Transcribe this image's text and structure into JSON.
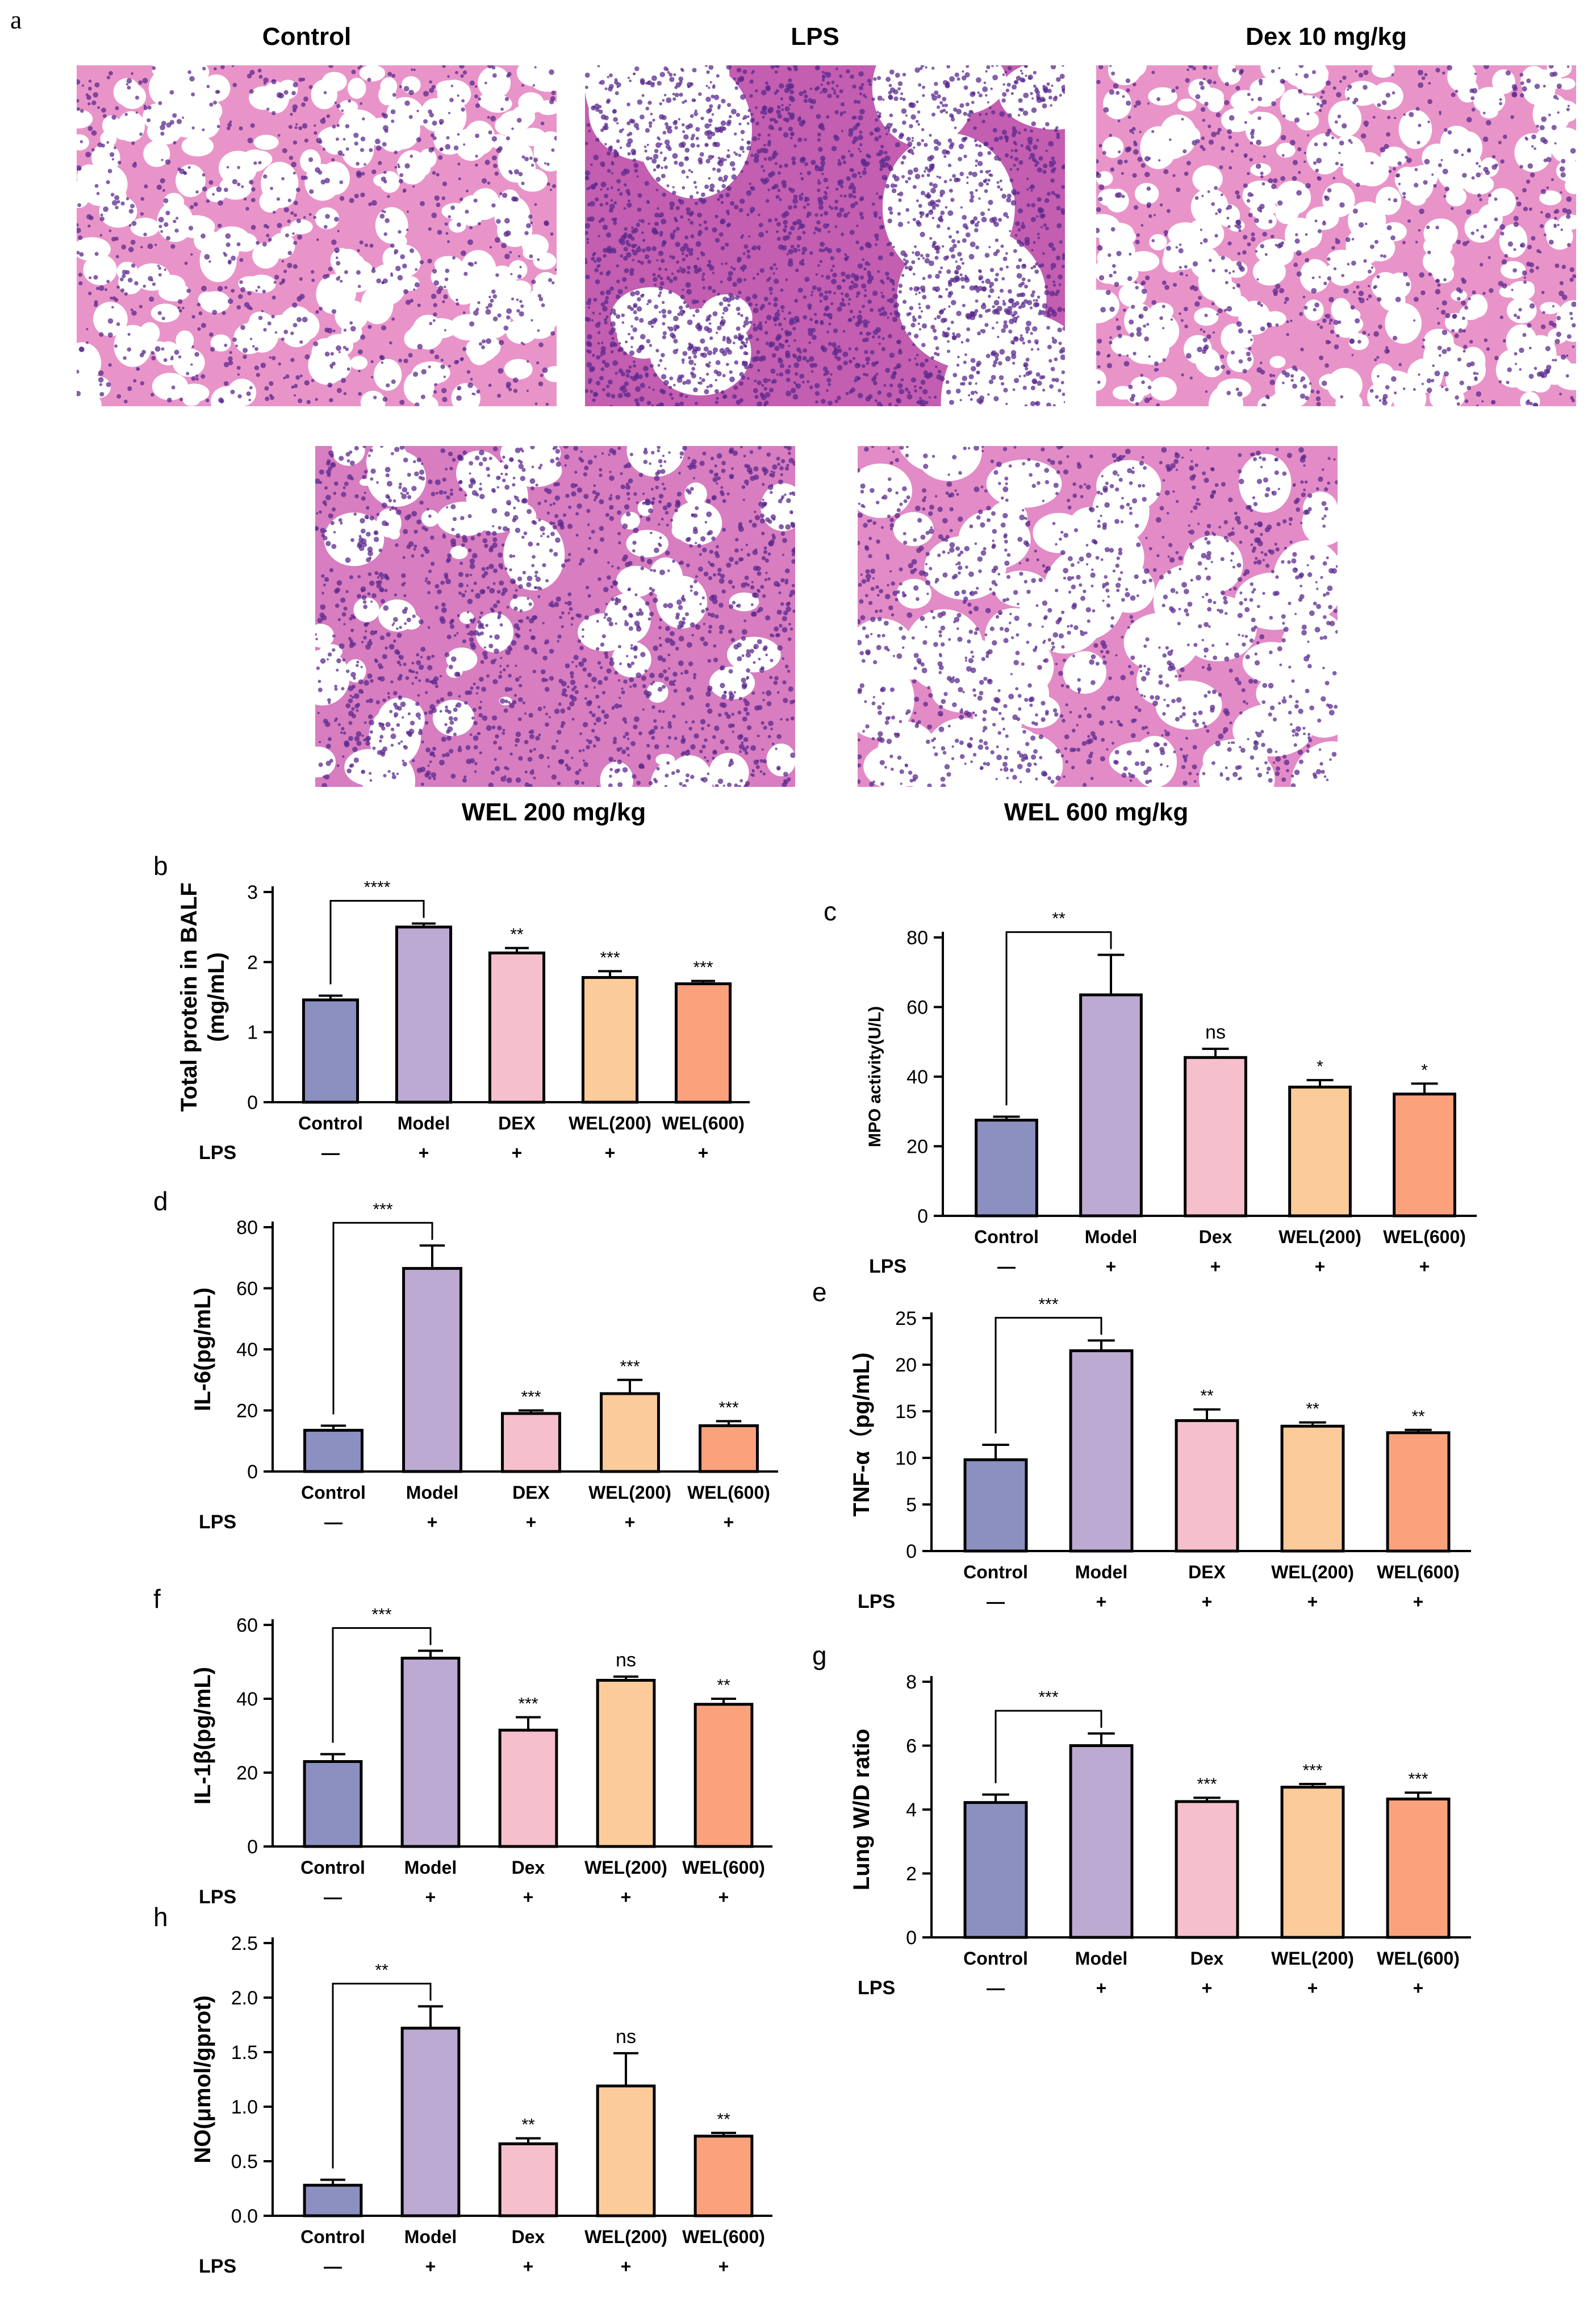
{
  "colors": {
    "control": "#8b90c0",
    "model": "#bcaad2",
    "dex": "#f5bfcb",
    "wel200": "#fccb9a",
    "wel600": "#fba27d",
    "tissue_pink": "#e58fc4",
    "nuclei": "#5b2a8e"
  },
  "figure_a": {
    "label": "a",
    "panels": [
      {
        "title": "Control",
        "variant": "normal"
      },
      {
        "title": "LPS",
        "variant": "injured"
      },
      {
        "title": "Dex 10 mg/kg",
        "variant": "normal"
      },
      {
        "title": "WEL 200 mg/kg",
        "variant": "dense"
      },
      {
        "title": "WEL 600 mg/kg",
        "variant": "medium"
      }
    ]
  },
  "chart_data": [
    {
      "label": "b",
      "type": "bar",
      "ylabel": "Total protein in BALF\n(mg/mL)",
      "ylabel_style": "serif",
      "categories": [
        "Control",
        "Model",
        "DEX",
        "WEL(200)",
        "WEL(600)"
      ],
      "lps": [
        "—",
        "+",
        "+",
        "+",
        "+"
      ],
      "lps_label": "LPS",
      "values": [
        1.46,
        2.5,
        2.13,
        1.78,
        1.69
      ],
      "errors": [
        0.06,
        0.05,
        0.07,
        0.09,
        0.04
      ],
      "ylim": [
        0,
        3
      ],
      "yticks": [
        0,
        1,
        2,
        3
      ],
      "bracket": "****",
      "marks": [
        "",
        "",
        "**",
        "***",
        "***"
      ]
    },
    {
      "label": "c",
      "type": "bar",
      "ylabel": "MPO activity(U/L)",
      "ylabel_style": "serif-small",
      "categories": [
        "Control",
        "Model",
        "Dex",
        "WEL(200)",
        "WEL(600)"
      ],
      "lps": [
        "—",
        "+",
        "+",
        "+",
        "+"
      ],
      "lps_label": "LPS",
      "values": [
        27.5,
        63.5,
        45.5,
        37,
        35
      ],
      "errors": [
        1,
        11.5,
        2.5,
        2,
        3
      ],
      "ylim": [
        0,
        80
      ],
      "yticks": [
        0,
        20,
        40,
        60,
        80
      ],
      "bracket": "**",
      "marks": [
        "",
        "",
        "ns",
        "*",
        "*"
      ]
    },
    {
      "label": "d",
      "type": "bar",
      "ylabel": "IL-6(pg/mL)",
      "ylabel_style": "serif",
      "categories": [
        "Control",
        "Model",
        "DEX",
        "WEL(200)",
        "WEL(600)"
      ],
      "lps": [
        "—",
        "+",
        "+",
        "+",
        "+"
      ],
      "lps_label": "LPS",
      "values": [
        13.5,
        66.5,
        19,
        25.5,
        15
      ],
      "errors": [
        1.5,
        7.5,
        1,
        4.5,
        1.5
      ],
      "ylim": [
        0,
        80
      ],
      "yticks": [
        0,
        20,
        40,
        60,
        80
      ],
      "bracket": "***",
      "marks": [
        "",
        "",
        "***",
        "***",
        "***"
      ]
    },
    {
      "label": "e",
      "type": "bar",
      "ylabel": "TNF-α（pg/mL)",
      "ylabel_style": "serif",
      "categories": [
        "Control",
        "Model",
        "DEX",
        "WEL(200)",
        "WEL(600)"
      ],
      "lps": [
        "—",
        "+",
        "+",
        "+",
        "+"
      ],
      "lps_label": "LPS",
      "values": [
        9.8,
        21.5,
        14,
        13.4,
        12.7
      ],
      "errors": [
        1.6,
        1.1,
        1.2,
        0.4,
        0.3
      ],
      "ylim": [
        0,
        25
      ],
      "yticks": [
        0,
        5,
        10,
        15,
        20,
        25
      ],
      "bracket": "***",
      "marks": [
        "",
        "",
        "**",
        "**",
        "**"
      ]
    },
    {
      "label": "f",
      "type": "bar",
      "ylabel": "IL-1β(pg/mL)",
      "ylabel_style": "serif",
      "categories": [
        "Control",
        "Model",
        "Dex",
        "WEL(200)",
        "WEL(600)"
      ],
      "lps": [
        "—",
        "+",
        "+",
        "+",
        "+"
      ],
      "lps_label": "LPS",
      "values": [
        23,
        51,
        31.5,
        45,
        38.5
      ],
      "errors": [
        2,
        2,
        3.5,
        1,
        1.5
      ],
      "ylim": [
        0,
        60
      ],
      "yticks": [
        0,
        20,
        40,
        60
      ],
      "bracket": "***",
      "marks": [
        "",
        "",
        "***",
        "ns",
        "**"
      ]
    },
    {
      "label": "g",
      "type": "bar",
      "ylabel": "Lung W/D ratio",
      "ylabel_style": "serif",
      "categories": [
        "Control",
        "Model",
        "Dex",
        "WEL(200)",
        "WEL(600)"
      ],
      "lps": [
        "—",
        "+",
        "+",
        "+",
        "+"
      ],
      "lps_label": "LPS",
      "values": [
        4.22,
        6.0,
        4.25,
        4.7,
        4.33
      ],
      "errors": [
        0.25,
        0.38,
        0.12,
        0.1,
        0.2
      ],
      "ylim": [
        0,
        8
      ],
      "yticks": [
        0,
        2,
        4,
        6,
        8
      ],
      "bracket": "***",
      "marks": [
        "",
        "",
        "***",
        "***",
        "***"
      ]
    },
    {
      "label": "h",
      "type": "bar",
      "ylabel": "NO(μmol/gprot)",
      "ylabel_style": "serif",
      "categories": [
        "Control",
        "Model",
        "Dex",
        "WEL(200)",
        "WEL(600)"
      ],
      "lps": [
        "—",
        "+",
        "+",
        "+",
        "+"
      ],
      "lps_label": "LPS",
      "values": [
        0.28,
        1.72,
        0.66,
        1.19,
        0.73
      ],
      "errors": [
        0.05,
        0.2,
        0.05,
        0.3,
        0.03
      ],
      "ylim": [
        0,
        2.5
      ],
      "yticks": [
        0.0,
        0.5,
        1.0,
        1.5,
        2.0,
        2.5
      ],
      "ytick_labels": [
        "0.0",
        "0.5",
        "1.0",
        "1.5",
        "2.0",
        "2.5"
      ],
      "bracket": "**",
      "marks": [
        "",
        "",
        "**",
        "ns",
        "**"
      ]
    }
  ]
}
